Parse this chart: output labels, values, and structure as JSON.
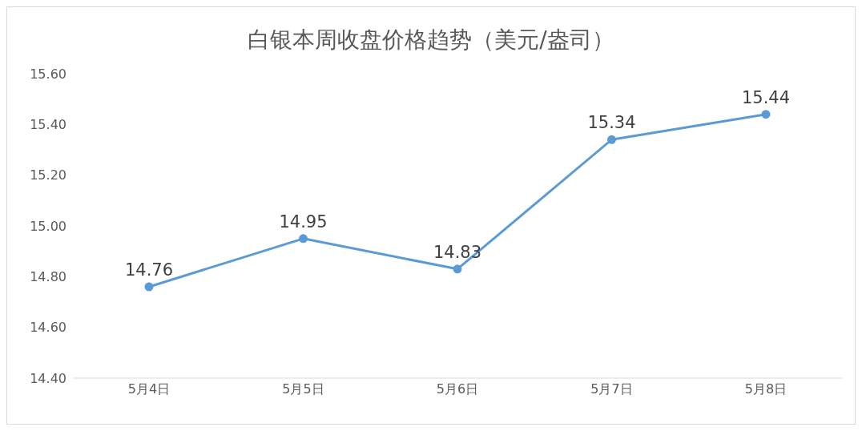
{
  "chart_data": {
    "type": "line",
    "title": "白银本周收盘价格趋势（美元/盎司）",
    "categories": [
      "5月4日",
      "5月5日",
      "5月6日",
      "5月7日",
      "5月8日"
    ],
    "series": [
      {
        "color": "#5b9bd5",
        "values": [
          14.76,
          14.95,
          14.83,
          15.34,
          15.44
        ]
      }
    ],
    "ylim": [
      14.4,
      15.6
    ],
    "yticks": [
      {
        "value": 14.4,
        "label": "14.40"
      },
      {
        "value": 14.6,
        "label": "14.60"
      },
      {
        "value": 14.8,
        "label": "14.80"
      },
      {
        "value": 15.0,
        "label": "15.00"
      },
      {
        "value": 15.2,
        "label": "15.20"
      },
      {
        "value": 15.4,
        "label": "15.40"
      },
      {
        "value": 15.6,
        "label": "15.60"
      }
    ],
    "grid": false,
    "marker": "circle",
    "line_style": "solid",
    "data_labels": true
  }
}
